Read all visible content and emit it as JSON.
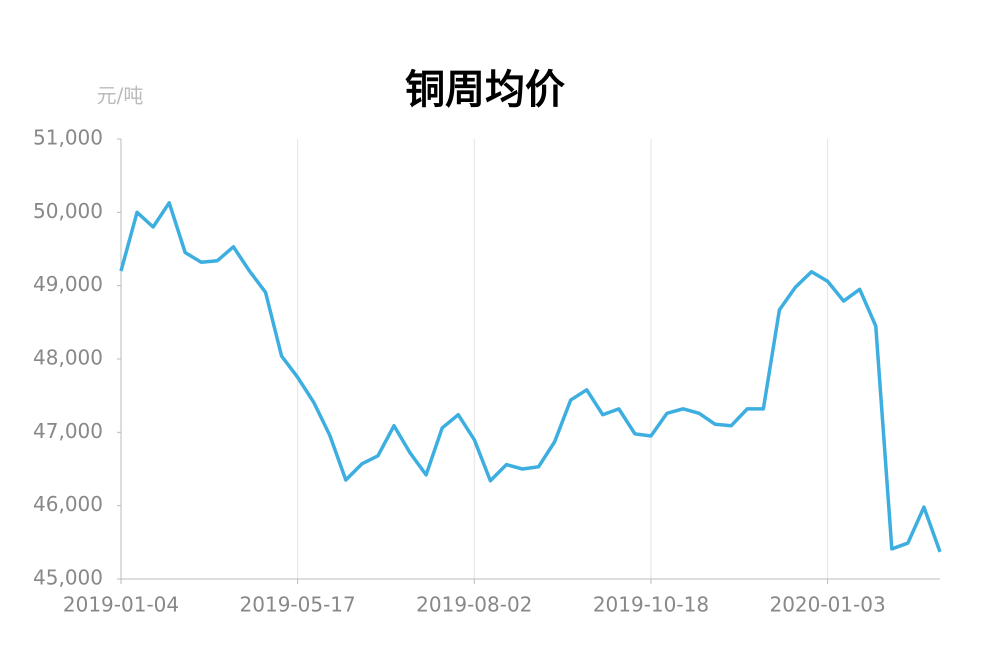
{
  "chart_data": {
    "type": "line",
    "title": "铜周均价",
    "y_axis_label": "元/吨",
    "categories": [
      "2019-01-04",
      null,
      null,
      null,
      null,
      null,
      null,
      null,
      null,
      null,
      null,
      "2019-05-17",
      null,
      null,
      null,
      null,
      null,
      null,
      null,
      null,
      null,
      null,
      "2019-08-02",
      null,
      null,
      null,
      null,
      null,
      null,
      null,
      null,
      null,
      null,
      "2019-10-18",
      null,
      null,
      null,
      null,
      null,
      null,
      null,
      null,
      null,
      null,
      "2020-01-03",
      null,
      null,
      null,
      null,
      null,
      null,
      null
    ],
    "values": [
      49200,
      50000,
      49800,
      50130,
      49450,
      49320,
      49340,
      49530,
      49200,
      48910,
      48040,
      47750,
      47410,
      46960,
      46350,
      46570,
      46680,
      47090,
      46720,
      46420,
      47060,
      47240,
      46900,
      46340,
      46560,
      46500,
      46530,
      46870,
      47440,
      47580,
      47240,
      47320,
      46980,
      46950,
      47260,
      47320,
      47260,
      47110,
      47090,
      47320,
      47320,
      48670,
      48980,
      49190,
      49060,
      48790,
      48950,
      48450,
      45410,
      45490,
      45980,
      45370
    ],
    "color": "#3daee0",
    "ylim": [
      45000,
      51000
    ],
    "yticks": [
      {
        "value": 45000,
        "label": "45,000"
      },
      {
        "value": 46000,
        "label": "46,000"
      },
      {
        "value": 47000,
        "label": "47,000"
      },
      {
        "value": 48000,
        "label": "48,000"
      },
      {
        "value": 49000,
        "label": "49,000"
      },
      {
        "value": 50000,
        "label": "50,000"
      },
      {
        "value": 51000,
        "label": "51,000"
      }
    ],
    "grid": true
  }
}
